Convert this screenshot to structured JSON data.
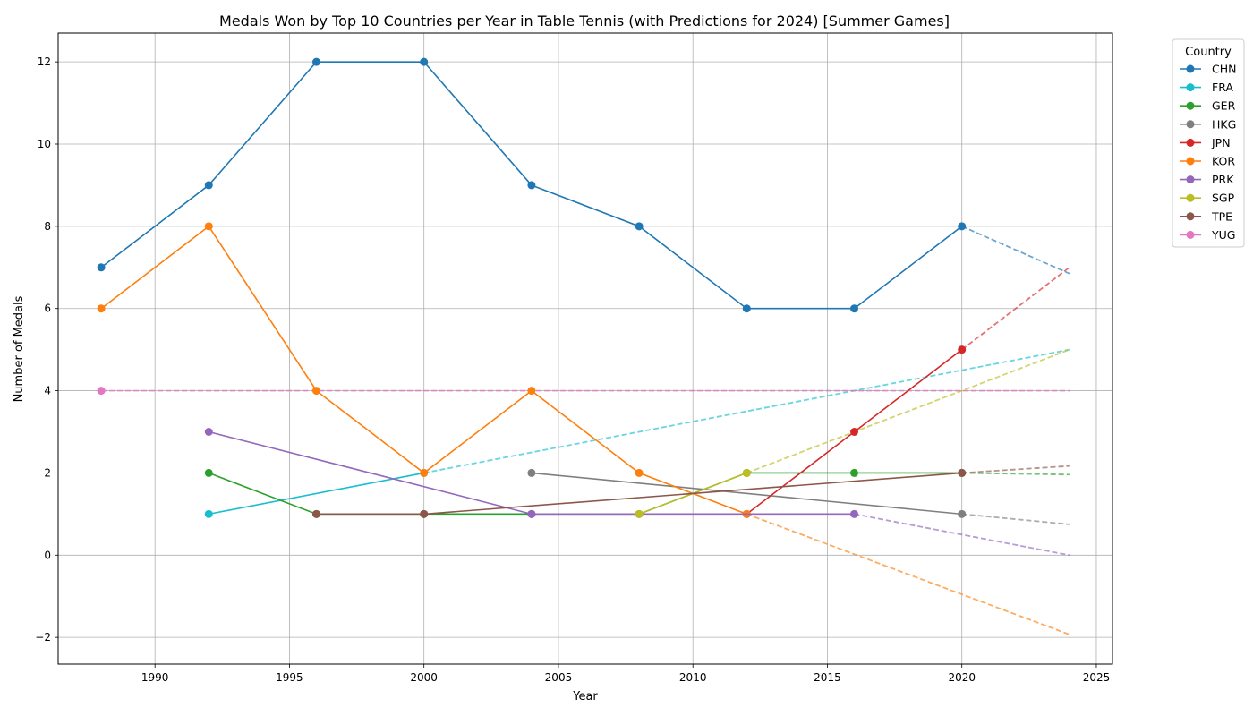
{
  "chart_data": {
    "type": "line",
    "title": "Medals Won by Top 10 Countries per Year in Table Tennis (with Predictions for 2024) [Summer Games]",
    "xlabel": "Year",
    "ylabel": "Number of Medals",
    "xlim": [
      1986.4,
      2025.6
    ],
    "ylim": [
      -2.65,
      12.7
    ],
    "xticks": [
      1990,
      1995,
      2000,
      2005,
      2010,
      2015,
      2020,
      2025
    ],
    "yticks": [
      -2,
      0,
      2,
      4,
      6,
      8,
      10,
      12
    ],
    "ytick_labels": [
      "−2",
      "0",
      "2",
      "4",
      "6",
      "8",
      "10",
      "12"
    ],
    "grid": true,
    "legend_title": "Country",
    "legend_position": "outside-top-right",
    "series": [
      {
        "name": "CHN",
        "color": "#1f77b4",
        "x": [
          1988,
          1992,
          1996,
          2000,
          2004,
          2008,
          2012,
          2016,
          2020
        ],
        "y": [
          7,
          9,
          12,
          12,
          9,
          8,
          6,
          6,
          8
        ],
        "prediction": {
          "x": [
            2020,
            2024
          ],
          "y": [
            8,
            6.85
          ]
        }
      },
      {
        "name": "FRA",
        "color": "#17becf",
        "x": [
          1992,
          2000
        ],
        "y": [
          1,
          2
        ],
        "prediction": {
          "x": [
            2000,
            2024
          ],
          "y": [
            2,
            5
          ]
        }
      },
      {
        "name": "GER",
        "color": "#2ca02c",
        "x": [
          1992,
          1996,
          2000,
          2004,
          2008,
          2012,
          2016,
          2020
        ],
        "y": [
          2,
          1,
          1,
          1,
          1,
          2,
          2,
          2
        ],
        "prediction": {
          "x": [
            2020,
            2024
          ],
          "y": [
            2,
            1.96
          ]
        }
      },
      {
        "name": "HKG",
        "color": "#7f7f7f",
        "x": [
          2004,
          2020
        ],
        "y": [
          2,
          1
        ],
        "prediction": {
          "x": [
            2020,
            2024
          ],
          "y": [
            1,
            0.75
          ]
        }
      },
      {
        "name": "JPN",
        "color": "#d62728",
        "x": [
          2012,
          2016,
          2020
        ],
        "y": [
          1,
          3,
          5
        ],
        "prediction": {
          "x": [
            2020,
            2024
          ],
          "y": [
            5,
            7
          ]
        }
      },
      {
        "name": "KOR",
        "color": "#ff7f0e",
        "x": [
          1988,
          1992,
          1996,
          2000,
          2004,
          2008,
          2012
        ],
        "y": [
          6,
          8,
          4,
          2,
          4,
          2,
          1
        ],
        "prediction": {
          "x": [
            2012,
            2024
          ],
          "y": [
            1,
            -1.93
          ]
        }
      },
      {
        "name": "PRK",
        "color": "#9467bd",
        "x": [
          1992,
          2004,
          2016
        ],
        "y": [
          3,
          1,
          1
        ],
        "prediction": {
          "x": [
            2016,
            2024
          ],
          "y": [
            1,
            0
          ]
        }
      },
      {
        "name": "SGP",
        "color": "#bcbd22",
        "x": [
          2008,
          2012
        ],
        "y": [
          1,
          2
        ],
        "prediction": {
          "x": [
            2012,
            2024
          ],
          "y": [
            2,
            5
          ]
        }
      },
      {
        "name": "TPE",
        "color": "#8c564b",
        "x": [
          1996,
          2000,
          2020
        ],
        "y": [
          1,
          1,
          2
        ],
        "prediction": {
          "x": [
            2020,
            2024
          ],
          "y": [
            2,
            2.17
          ]
        }
      },
      {
        "name": "YUG",
        "color": "#e377c2",
        "x": [
          1988
        ],
        "y": [
          4
        ],
        "prediction": {
          "x": [
            1988,
            2024
          ],
          "y": [
            4,
            4
          ]
        }
      }
    ]
  }
}
